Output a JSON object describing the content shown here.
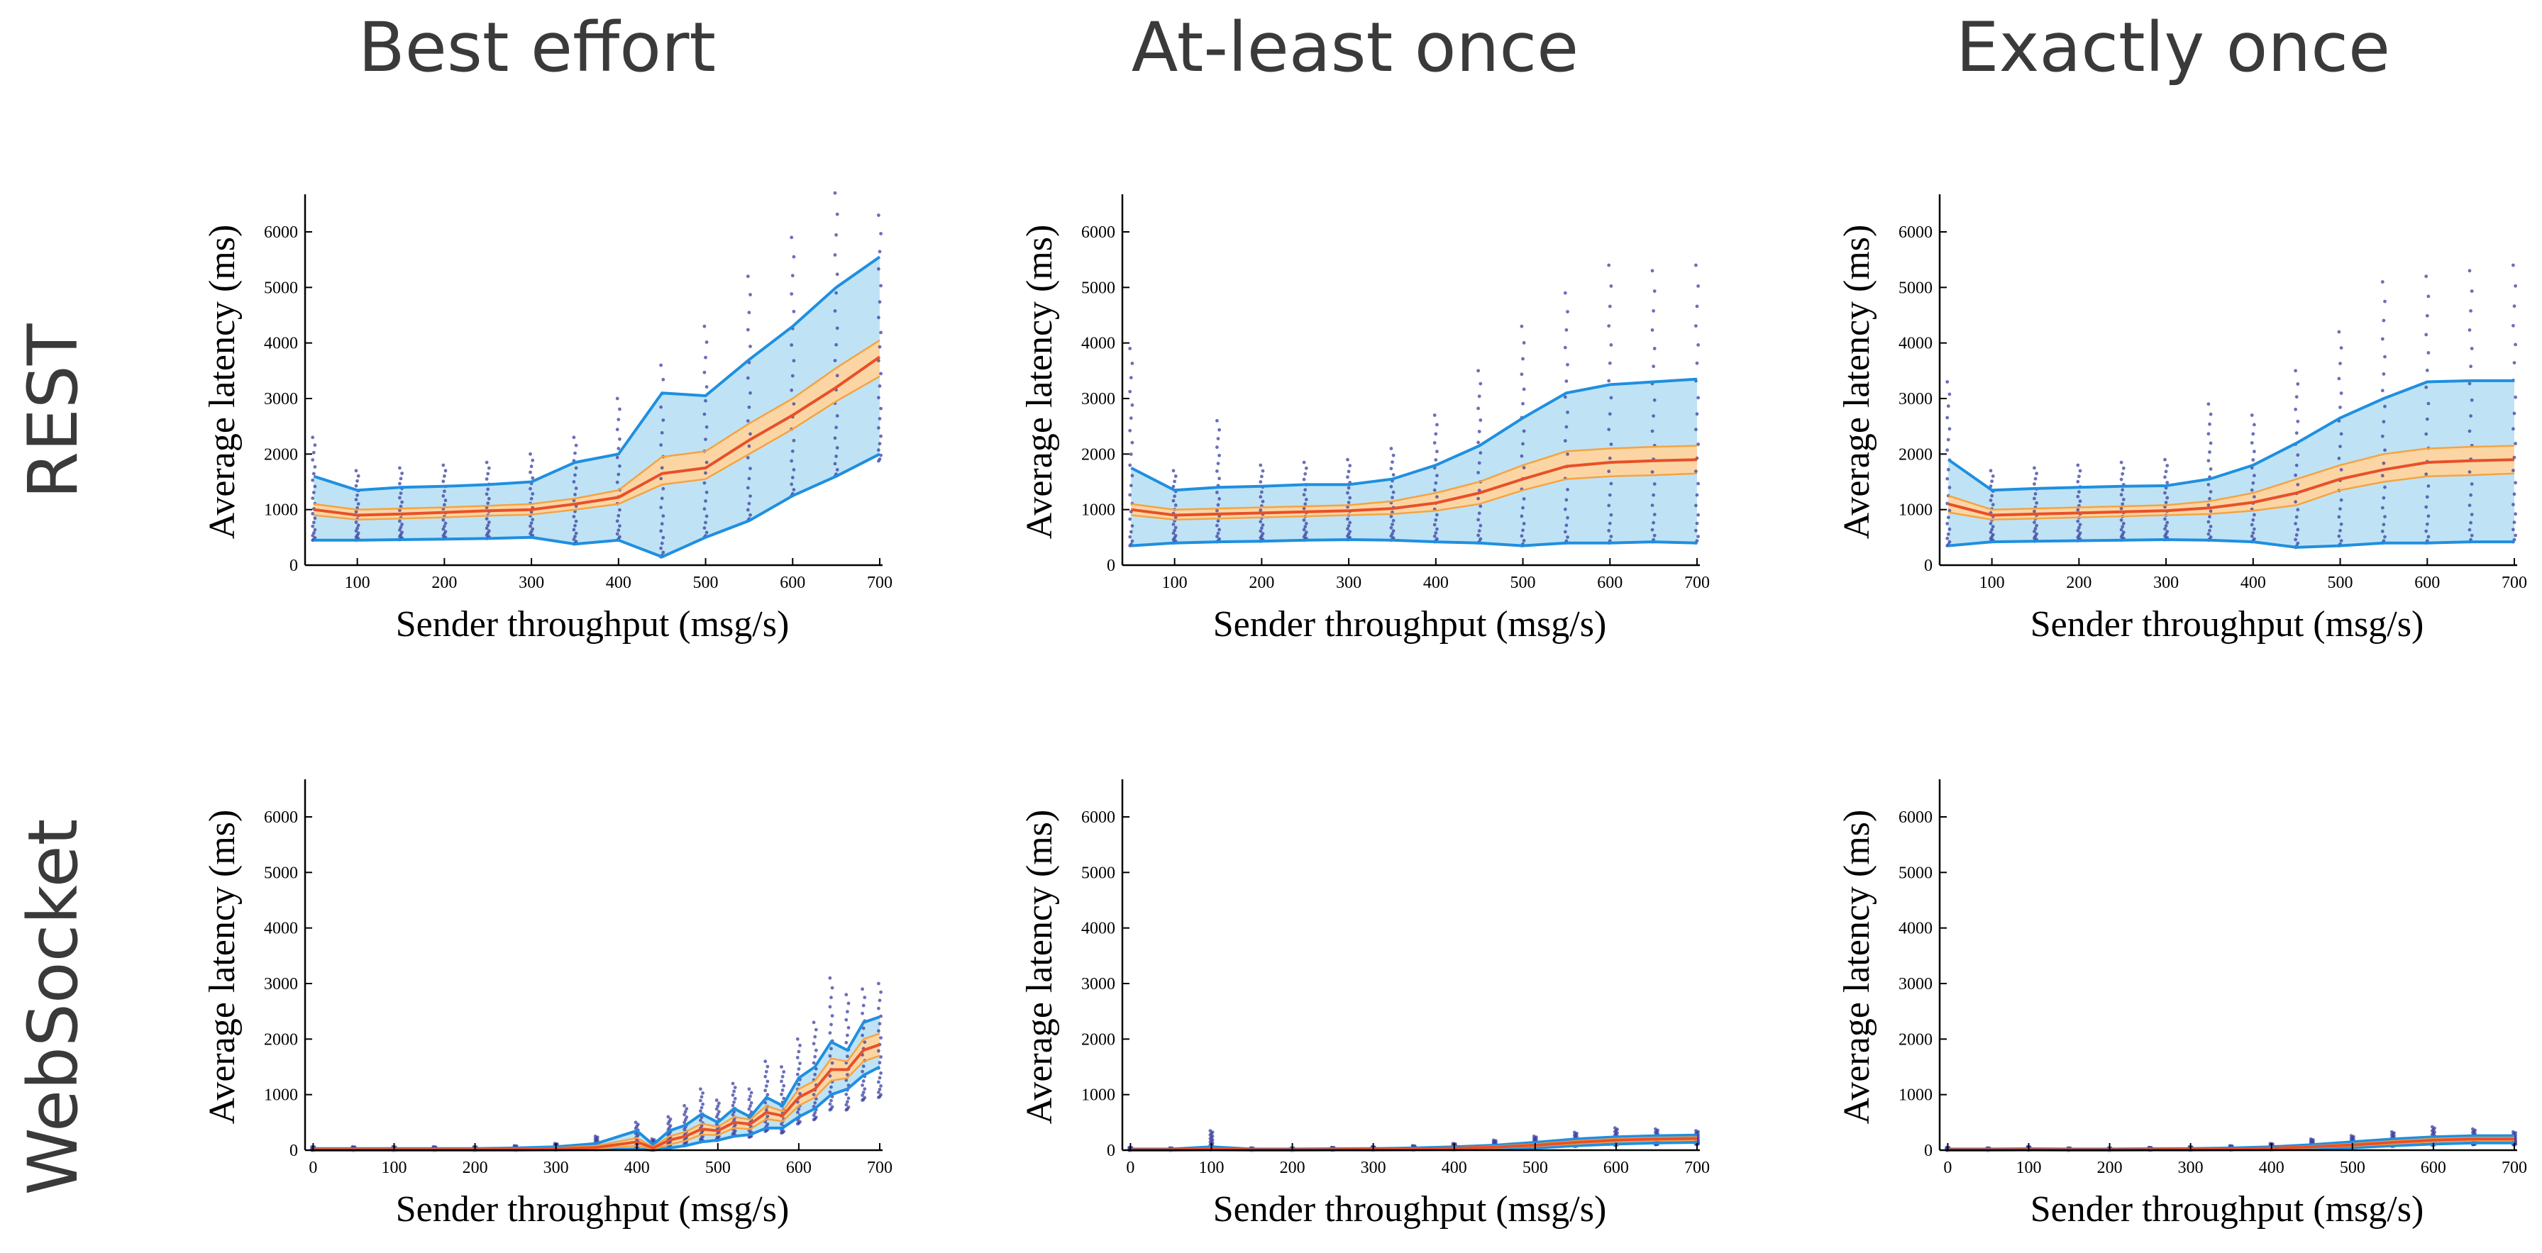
{
  "column_titles": [
    "Best effort",
    "At-least once",
    "Exactly once"
  ],
  "row_titles": [
    "REST",
    "WebSocket"
  ],
  "colors": {
    "band_fill": "#bfe3f5",
    "band_edge": "#1f8fe0",
    "ci_fill": "#fbd6a4",
    "ci_edge": "#f5a342",
    "mean_line": "#e8502a",
    "points": "#3b3fa0"
  },
  "chart_data": [
    {
      "type": "line",
      "row": "REST",
      "column": "Best effort",
      "xlabel": "Sender throughput (msg/s)",
      "ylabel": "Average latency (ms)",
      "xlim": [
        40,
        700
      ],
      "ylim": [
        0,
        6600
      ],
      "xticks": [
        100,
        200,
        300,
        400,
        500,
        600,
        700
      ],
      "yticks": [
        0,
        1000,
        2000,
        3000,
        4000,
        5000,
        6000
      ],
      "x": [
        50,
        100,
        150,
        200,
        250,
        300,
        350,
        400,
        450,
        500,
        550,
        600,
        650,
        700
      ],
      "series": [
        {
          "name": "upper",
          "values": [
            1600,
            1350,
            1400,
            1420,
            1450,
            1500,
            1850,
            2000,
            3100,
            3050,
            3700,
            4300,
            5000,
            5550
          ]
        },
        {
          "name": "ci_upper",
          "values": [
            1100,
            1000,
            1020,
            1040,
            1070,
            1100,
            1200,
            1350,
            1950,
            2050,
            2550,
            3000,
            3550,
            4050
          ]
        },
        {
          "name": "mean",
          "values": [
            1000,
            900,
            920,
            950,
            980,
            1000,
            1100,
            1220,
            1650,
            1750,
            2250,
            2700,
            3200,
            3750
          ]
        },
        {
          "name": "ci_lower",
          "values": [
            900,
            820,
            840,
            860,
            890,
            910,
            1000,
            1100,
            1450,
            1550,
            2000,
            2450,
            2950,
            3400
          ]
        },
        {
          "name": "lower",
          "values": [
            450,
            450,
            460,
            470,
            480,
            500,
            380,
            450,
            150,
            500,
            800,
            1250,
            1600,
            2000
          ]
        }
      ],
      "points_max": [
        2300,
        1700,
        1750,
        1800,
        1850,
        2000,
        2300,
        3000,
        3600,
        4300,
        5200,
        5900,
        6700,
        6300
      ]
    },
    {
      "type": "line",
      "row": "REST",
      "column": "At-least once",
      "xlabel": "Sender throughput (msg/s)",
      "ylabel": "Average latency (ms)",
      "xlim": [
        40,
        700
      ],
      "ylim": [
        0,
        6600
      ],
      "xticks": [
        100,
        200,
        300,
        400,
        500,
        600,
        700
      ],
      "yticks": [
        0,
        1000,
        2000,
        3000,
        4000,
        5000,
        6000
      ],
      "x": [
        50,
        100,
        150,
        200,
        250,
        300,
        350,
        400,
        450,
        500,
        550,
        600,
        650,
        700
      ],
      "series": [
        {
          "name": "upper",
          "values": [
            1750,
            1350,
            1400,
            1420,
            1450,
            1450,
            1550,
            1800,
            2150,
            2650,
            3100,
            3250,
            3300,
            3350
          ]
        },
        {
          "name": "ci_upper",
          "values": [
            1100,
            1000,
            1020,
            1040,
            1060,
            1080,
            1150,
            1300,
            1500,
            1800,
            2050,
            2100,
            2130,
            2150
          ]
        },
        {
          "name": "mean",
          "values": [
            1000,
            900,
            920,
            940,
            960,
            980,
            1020,
            1120,
            1300,
            1550,
            1780,
            1850,
            1880,
            1900
          ]
        },
        {
          "name": "ci_lower",
          "values": [
            900,
            820,
            840,
            860,
            880,
            900,
            920,
            980,
            1100,
            1350,
            1550,
            1600,
            1620,
            1650
          ]
        },
        {
          "name": "lower",
          "values": [
            350,
            400,
            420,
            430,
            450,
            460,
            450,
            420,
            400,
            350,
            400,
            400,
            420,
            400
          ]
        }
      ],
      "points_max": [
        3900,
        1700,
        2600,
        1800,
        1850,
        1900,
        2100,
        2700,
        3500,
        4300,
        4900,
        5400,
        5300,
        5400
      ]
    },
    {
      "type": "line",
      "row": "REST",
      "column": "Exactly once",
      "xlabel": "Sender throughput (msg/s)",
      "ylabel": "Average latency (ms)",
      "xlim": [
        40,
        700
      ],
      "ylim": [
        0,
        6600
      ],
      "xticks": [
        100,
        200,
        300,
        400,
        500,
        600,
        700
      ],
      "yticks": [
        0,
        1000,
        2000,
        3000,
        4000,
        5000,
        6000
      ],
      "x": [
        50,
        100,
        150,
        200,
        250,
        300,
        350,
        400,
        450,
        500,
        550,
        600,
        650,
        700
      ],
      "series": [
        {
          "name": "upper",
          "values": [
            1900,
            1350,
            1380,
            1400,
            1420,
            1430,
            1550,
            1800,
            2200,
            2650,
            3000,
            3300,
            3320,
            3320
          ]
        },
        {
          "name": "ci_upper",
          "values": [
            1250,
            1000,
            1020,
            1040,
            1060,
            1080,
            1150,
            1300,
            1550,
            1800,
            2000,
            2100,
            2130,
            2150
          ]
        },
        {
          "name": "mean",
          "values": [
            1100,
            900,
            920,
            940,
            960,
            980,
            1030,
            1130,
            1300,
            1550,
            1720,
            1850,
            1880,
            1900
          ]
        },
        {
          "name": "ci_lower",
          "values": [
            950,
            820,
            840,
            860,
            880,
            900,
            920,
            980,
            1080,
            1350,
            1500,
            1600,
            1620,
            1650
          ]
        },
        {
          "name": "lower",
          "values": [
            350,
            420,
            430,
            440,
            450,
            460,
            450,
            420,
            320,
            350,
            400,
            400,
            420,
            420
          ]
        }
      ],
      "points_max": [
        3300,
        1700,
        1750,
        1800,
        1850,
        1900,
        2900,
        2700,
        3500,
        4200,
        5100,
        5200,
        5300,
        5400
      ]
    },
    {
      "type": "line",
      "row": "WebSocket",
      "column": "Best effort",
      "xlabel": "Sender throughput (msg/s)",
      "ylabel": "Average latency (ms)",
      "xlim": [
        -10,
        700
      ],
      "ylim": [
        0,
        6600
      ],
      "xticks": [
        0,
        100,
        200,
        300,
        400,
        500,
        600,
        700
      ],
      "yticks": [
        0,
        1000,
        2000,
        3000,
        4000,
        5000,
        6000
      ],
      "x": [
        0,
        50,
        100,
        150,
        200,
        250,
        300,
        350,
        400,
        420,
        440,
        460,
        480,
        500,
        520,
        540,
        560,
        580,
        600,
        620,
        640,
        660,
        680,
        700
      ],
      "series": [
        {
          "name": "upper",
          "values": [
            30,
            30,
            30,
            30,
            30,
            40,
            60,
            120,
            350,
            100,
            350,
            450,
            650,
            500,
            750,
            600,
            950,
            800,
            1300,
            1500,
            1950,
            1800,
            2300,
            2400
          ]
        },
        {
          "name": "ci_upper",
          "values": [
            20,
            20,
            20,
            20,
            20,
            25,
            40,
            80,
            220,
            60,
            250,
            330,
            480,
            420,
            600,
            550,
            800,
            700,
            1100,
            1250,
            1650,
            1600,
            2000,
            2100
          ]
        },
        {
          "name": "mean",
          "values": [
            10,
            10,
            10,
            10,
            10,
            15,
            25,
            50,
            150,
            40,
            180,
            250,
            380,
            350,
            500,
            470,
            680,
            620,
            950,
            1100,
            1450,
            1450,
            1800,
            1900
          ]
        },
        {
          "name": "ci_lower",
          "values": [
            5,
            5,
            5,
            5,
            5,
            8,
            15,
            30,
            80,
            20,
            100,
            170,
            280,
            270,
            400,
            380,
            560,
            520,
            800,
            950,
            1250,
            1300,
            1600,
            1700
          ]
        },
        {
          "name": "lower",
          "values": [
            0,
            0,
            0,
            0,
            0,
            0,
            5,
            10,
            20,
            0,
            40,
            80,
            150,
            180,
            250,
            280,
            400,
            400,
            600,
            750,
            1000,
            1100,
            1350,
            1500
          ]
        }
      ],
      "points_max": [
        60,
        60,
        60,
        60,
        60,
        80,
        120,
        250,
        500,
        200,
        600,
        800,
        1100,
        900,
        1200,
        1100,
        1600,
        1500,
        2000,
        2300,
        3100,
        2800,
        2900,
        3000
      ]
    },
    {
      "type": "line",
      "row": "WebSocket",
      "column": "At-least once",
      "xlabel": "Sender throughput (msg/s)",
      "ylabel": "Average latency (ms)",
      "xlim": [
        -10,
        700
      ],
      "ylim": [
        0,
        6600
      ],
      "xticks": [
        0,
        100,
        200,
        300,
        400,
        500,
        600,
        700
      ],
      "yticks": [
        0,
        1000,
        2000,
        3000,
        4000,
        5000,
        6000
      ],
      "x": [
        0,
        50,
        100,
        150,
        200,
        250,
        300,
        350,
        400,
        450,
        500,
        550,
        600,
        650,
        700
      ],
      "series": [
        {
          "name": "upper",
          "values": [
            20,
            20,
            60,
            20,
            20,
            25,
            30,
            40,
            60,
            90,
            140,
            200,
            240,
            260,
            270
          ]
        },
        {
          "name": "ci_upper",
          "values": [
            12,
            12,
            40,
            12,
            12,
            16,
            20,
            28,
            45,
            70,
            110,
            165,
            205,
            225,
            235
          ]
        },
        {
          "name": "mean",
          "values": [
            8,
            8,
            30,
            8,
            8,
            10,
            14,
            20,
            35,
            55,
            90,
            140,
            180,
            200,
            210
          ]
        },
        {
          "name": "ci_lower",
          "values": [
            4,
            4,
            20,
            4,
            4,
            6,
            9,
            14,
            25,
            40,
            70,
            115,
            155,
            175,
            185
          ]
        },
        {
          "name": "lower",
          "values": [
            0,
            0,
            5,
            0,
            0,
            2,
            4,
            6,
            10,
            20,
            40,
            80,
            110,
            130,
            140
          ]
        }
      ],
      "points_max": [
        50,
        40,
        350,
        40,
        40,
        50,
        60,
        80,
        120,
        180,
        250,
        320,
        400,
        380,
        350
      ]
    },
    {
      "type": "line",
      "row": "WebSocket",
      "column": "Exactly once",
      "xlabel": "Sender throughput (msg/s)",
      "ylabel": "Average latency (ms)",
      "xlim": [
        -10,
        700
      ],
      "ylim": [
        0,
        6600
      ],
      "xticks": [
        0,
        100,
        200,
        300,
        400,
        500,
        600,
        700
      ],
      "yticks": [
        0,
        1000,
        2000,
        3000,
        4000,
        5000,
        6000
      ],
      "x": [
        0,
        50,
        100,
        150,
        200,
        250,
        300,
        350,
        400,
        450,
        500,
        550,
        600,
        650,
        700
      ],
      "series": [
        {
          "name": "upper",
          "values": [
            20,
            20,
            25,
            20,
            20,
            25,
            30,
            40,
            60,
            100,
            150,
            200,
            240,
            260,
            260
          ]
        },
        {
          "name": "ci_upper",
          "values": [
            12,
            12,
            15,
            12,
            12,
            16,
            20,
            28,
            45,
            75,
            115,
            165,
            205,
            225,
            225
          ]
        },
        {
          "name": "mean",
          "values": [
            8,
            8,
            10,
            8,
            8,
            10,
            14,
            20,
            35,
            60,
            95,
            140,
            180,
            200,
            200
          ]
        },
        {
          "name": "ci_lower",
          "values": [
            4,
            4,
            6,
            4,
            4,
            6,
            9,
            14,
            25,
            45,
            75,
            115,
            155,
            175,
            175
          ]
        },
        {
          "name": "lower",
          "values": [
            0,
            0,
            2,
            0,
            0,
            2,
            4,
            6,
            10,
            25,
            45,
            80,
            110,
            130,
            130
          ]
        }
      ],
      "points_max": [
        50,
        40,
        60,
        40,
        40,
        50,
        60,
        80,
        120,
        200,
        260,
        330,
        420,
        380,
        330
      ]
    }
  ]
}
